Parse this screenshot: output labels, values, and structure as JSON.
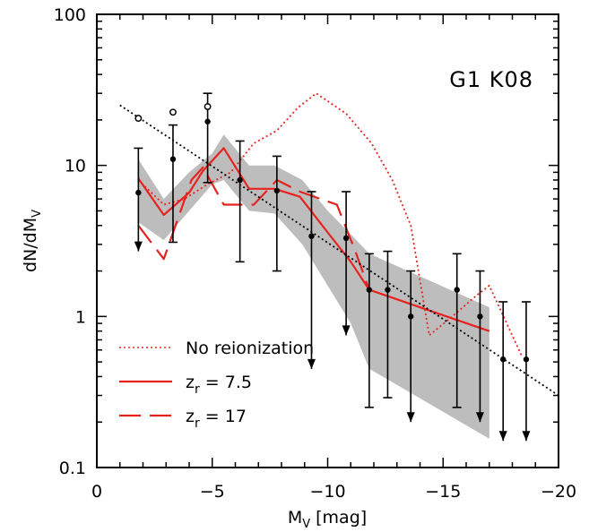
{
  "chart_data": {
    "type": "line",
    "annotation": "G1 K08",
    "axes": {
      "x": {
        "label_main": "M",
        "label_sub": "V",
        "label_unit": "[mag]",
        "range": [
          0,
          -20
        ],
        "ticks": [
          0,
          -5,
          -10,
          -15,
          -20
        ],
        "tick_labels": [
          "0",
          "−5",
          "−10",
          "−15",
          "−20"
        ],
        "minor_step": 1
      },
      "y": {
        "label_d1": "dN/dM",
        "label_sub": "V",
        "scale": "log",
        "range": [
          0.1,
          100
        ],
        "ticks": [
          0.1,
          1,
          10,
          100
        ],
        "tick_labels": [
          "0.1",
          "1",
          "10",
          "100"
        ]
      }
    },
    "band": {
      "name": "shaded range",
      "color": "#bdbdbd",
      "x": [
        -1.8,
        -2.9,
        -4.0,
        -5.0,
        -5.5,
        -6.6,
        -7.7,
        -8.9,
        -10.0,
        -11.0,
        -11.8,
        -17.0
      ],
      "upper": [
        11.0,
        6.0,
        9.0,
        12.0,
        16.0,
        10.0,
        10.0,
        8.0,
        5.0,
        3.5,
        2.6,
        1.15
      ],
      "lower": [
        4.2,
        3.2,
        5.0,
        7.5,
        8.0,
        5.0,
        4.8,
        3.0,
        1.6,
        0.9,
        0.45,
        0.155
      ]
    },
    "series": [
      {
        "name": "No reionization",
        "style": "dotted",
        "color": "#e8231f",
        "x": [
          -1.8,
          -2.9,
          -3.8,
          -4.8,
          -5.8,
          -6.8,
          -7.8,
          -8.7,
          -9.5,
          -10.8,
          -11.9,
          -12.8,
          -13.6,
          -14.4,
          -15.4,
          -16.5,
          -17.0,
          -18.4
        ],
        "y": [
          8.0,
          5.5,
          6.0,
          7.5,
          9.0,
          14.0,
          17.0,
          24.0,
          30.0,
          22.0,
          14.0,
          8.0,
          4.0,
          0.75,
          1.0,
          1.4,
          1.6,
          0.55
        ]
      },
      {
        "name": "z_r = 7.5",
        "legend_main": "z",
        "legend_sub": "r",
        "legend_value": " = 7.5",
        "style": "solid",
        "color": "#e8231f",
        "x": [
          -1.8,
          -2.9,
          -4.0,
          -4.6,
          -5.5,
          -6.6,
          -7.7,
          -8.8,
          -10.0,
          -11.0,
          -11.8,
          -17.0
        ],
        "y": [
          8.2,
          4.7,
          6.6,
          9.2,
          13.0,
          7.0,
          7.0,
          6.2,
          3.6,
          2.3,
          1.5,
          0.8
        ]
      },
      {
        "name": "z_r = 17",
        "legend_main": "z",
        "legend_sub": "r",
        "legend_value": " = 17",
        "style": "dashed",
        "color": "#e8231f",
        "x": [
          -1.8,
          -2.9,
          -4.1,
          -4.6,
          -5.5,
          -6.8,
          -7.8,
          -8.8,
          -10.4,
          -11.2,
          -11.8
        ],
        "y": [
          4.0,
          2.4,
          8.0,
          9.7,
          5.5,
          5.5,
          8.0,
          6.7,
          5.5,
          2.7,
          1.5
        ]
      },
      {
        "name": "fit",
        "style": "dotted",
        "color": "#000000",
        "x": [
          -1.0,
          -20.0
        ],
        "y": [
          25.0,
          0.3
        ]
      }
    ],
    "points": {
      "x": [
        -1.8,
        -3.3,
        -4.8,
        -6.2,
        -7.8,
        -9.3,
        -10.8,
        -11.8,
        -12.6,
        -13.6,
        -15.6,
        -16.6,
        -17.6,
        -18.6
      ],
      "y": [
        6.6,
        11.0,
        19.5,
        8.0,
        6.8,
        3.4,
        3.3,
        1.5,
        1.5,
        1.0,
        1.5,
        1.0,
        0.52,
        0.52
      ],
      "err_upper": [
        13.0,
        18.5,
        30.0,
        14.5,
        11.5,
        6.7,
        6.7,
        2.6,
        2.7,
        2.0,
        2.6,
        2.0,
        1.25,
        1.25
      ],
      "err_lower": [
        2.7,
        3.1,
        7.7,
        2.3,
        2.0,
        0.45,
        0.75,
        0.25,
        0.29,
        0.2,
        0.25,
        0.2,
        0.15,
        0.15
      ],
      "upper_limit": [
        true,
        false,
        false,
        false,
        false,
        true,
        true,
        false,
        false,
        true,
        false,
        true,
        true,
        true
      ]
    },
    "open_points": {
      "x": [
        -1.8,
        -3.3,
        -4.8
      ],
      "y": [
        20.5,
        22.5,
        24.5
      ]
    },
    "legend_placement": "bottom-left",
    "grid": false
  }
}
